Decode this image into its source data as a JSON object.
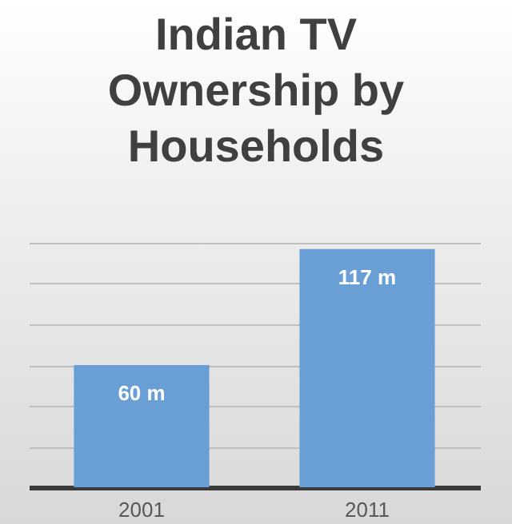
{
  "chart_data": {
    "type": "bar",
    "title": "Indian TV Ownership by Households",
    "categories": [
      "2001",
      "2011"
    ],
    "series": [
      {
        "color": "#6a9fd6",
        "values": [
          60,
          117
        ],
        "value_labels": [
          "60 m",
          "117 m"
        ]
      }
    ],
    "grid": "y",
    "tick_labels": "x"
  }
}
